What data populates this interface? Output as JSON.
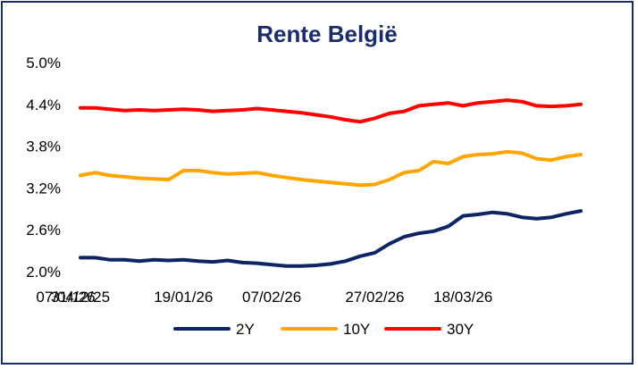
{
  "chart_data": {
    "type": "line",
    "title": "Rente België",
    "xlabel": "",
    "ylabel": "",
    "ylim": [
      2.0,
      5.0
    ],
    "yticks": [
      "5.0%",
      "4.4%",
      "3.8%",
      "3.2%",
      "2.6%",
      "2.0%"
    ],
    "x_ticks": [
      "31/12/25",
      "19/01/26",
      "07/02/26",
      "27/02/26",
      "18/03/26",
      "07/04/26"
    ],
    "x": [
      "31/12/25",
      "02/01/26",
      "05/01/26",
      "08/01/26",
      "11/01/26",
      "14/01/26",
      "17/01/26",
      "19/01/26",
      "22/01/26",
      "25/01/26",
      "28/01/26",
      "31/01/26",
      "03/02/26",
      "07/02/26",
      "10/02/26",
      "13/02/26",
      "16/02/26",
      "19/02/26",
      "22/02/26",
      "25/02/26",
      "27/02/26",
      "02/03/26",
      "05/03/26",
      "08/03/26",
      "11/03/26",
      "14/03/26",
      "18/03/26",
      "21/03/26",
      "24/03/26",
      "27/03/26",
      "30/03/26",
      "02/04/26",
      "05/04/26",
      "08/04/26",
      "11/04/26"
    ],
    "series": [
      {
        "name": "2Y",
        "color": "#0d2465",
        "values": [
          2.2,
          2.2,
          2.17,
          2.17,
          2.15,
          2.17,
          2.16,
          2.17,
          2.15,
          2.14,
          2.16,
          2.13,
          2.12,
          2.1,
          2.08,
          2.08,
          2.09,
          2.11,
          2.15,
          2.22,
          2.27,
          2.4,
          2.5,
          2.55,
          2.58,
          2.65,
          2.8,
          2.82,
          2.85,
          2.83,
          2.78,
          2.76,
          2.78,
          2.83,
          2.87
        ]
      },
      {
        "name": "10Y",
        "color": "#ffa500",
        "values": [
          3.38,
          3.42,
          3.38,
          3.36,
          3.34,
          3.33,
          3.32,
          3.45,
          3.45,
          3.42,
          3.4,
          3.41,
          3.42,
          3.38,
          3.35,
          3.32,
          3.3,
          3.28,
          3.26,
          3.24,
          3.25,
          3.32,
          3.42,
          3.45,
          3.58,
          3.55,
          3.65,
          3.68,
          3.69,
          3.72,
          3.7,
          3.62,
          3.6,
          3.65,
          3.68
        ]
      },
      {
        "name": "30Y",
        "color": "#ff0000",
        "values": [
          4.35,
          4.35,
          4.33,
          4.31,
          4.32,
          4.31,
          4.32,
          4.33,
          4.32,
          4.3,
          4.31,
          4.32,
          4.34,
          4.32,
          4.3,
          4.28,
          4.25,
          4.22,
          4.18,
          4.15,
          4.2,
          4.27,
          4.3,
          4.38,
          4.4,
          4.42,
          4.38,
          4.42,
          4.44,
          4.46,
          4.44,
          4.38,
          4.37,
          4.38,
          4.4
        ]
      }
    ],
    "legend_position": "bottom",
    "grid": false
  }
}
